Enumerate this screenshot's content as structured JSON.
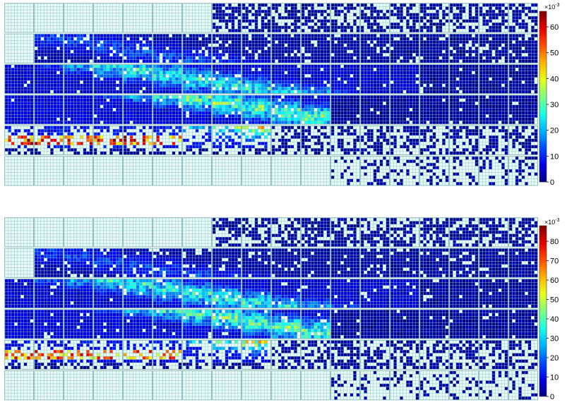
{
  "chart_data": [
    {
      "type": "heatmap",
      "title": "",
      "grid_rows": 6,
      "grid_cols": 18,
      "cells_per_tile": 9,
      "colormap": "jet",
      "empty_cell_color": "#e8fbf8",
      "tile_border_color": "#69a3a3",
      "zlim": [
        0,
        66
      ],
      "colorbar_ticks": [
        "0",
        "10",
        "20",
        "30",
        "40",
        "50",
        "60"
      ],
      "colorbar_multiplier": "×10",
      "colorbar_exponent": "-3",
      "occupancy_rows": [
        {
          "row": 0,
          "empty_until_col": 7,
          "sparse_from_col": 7,
          "density": 0.6,
          "peak": 0
        },
        {
          "row": 1,
          "empty_until_col": 1,
          "sparse_from_col": 13,
          "density": 0.9,
          "peak": 20
        },
        {
          "row": 2,
          "empty_until_col": 0,
          "sparse_from_col": 14,
          "density": 0.95,
          "peak": 40
        },
        {
          "row": 3,
          "empty_until_col": 0,
          "sparse_from_col": 11,
          "density": 0.95,
          "peak": 48
        },
        {
          "row": 4,
          "empty_until_col": 0,
          "sparse_from_col": 9,
          "density": 0.5,
          "peak": 66
        },
        {
          "row": 5,
          "empty_until_col": 11,
          "sparse_from_col": 11,
          "density": 0.25,
          "peak": 0
        }
      ]
    },
    {
      "type": "heatmap",
      "title": "",
      "grid_rows": 6,
      "grid_cols": 18,
      "cells_per_tile": 9,
      "colormap": "jet",
      "empty_cell_color": "#e8fbf8",
      "tile_border_color": "#69a3a3",
      "zlim": [
        0,
        88
      ],
      "colorbar_ticks": [
        "0",
        "10",
        "20",
        "30",
        "40",
        "50",
        "60",
        "70",
        "80"
      ],
      "colorbar_multiplier": "×10",
      "colorbar_exponent": "-3",
      "occupancy_rows": [
        {
          "row": 0,
          "empty_until_col": 7,
          "sparse_from_col": 7,
          "density": 0.6,
          "peak": 0
        },
        {
          "row": 1,
          "empty_until_col": 1,
          "sparse_from_col": 13,
          "density": 0.9,
          "peak": 25
        },
        {
          "row": 2,
          "empty_until_col": 0,
          "sparse_from_col": 14,
          "density": 0.95,
          "peak": 55
        },
        {
          "row": 3,
          "empty_until_col": 0,
          "sparse_from_col": 11,
          "density": 0.95,
          "peak": 62
        },
        {
          "row": 4,
          "empty_until_col": 0,
          "sparse_from_col": 9,
          "density": 0.5,
          "peak": 82
        },
        {
          "row": 5,
          "empty_until_col": 11,
          "sparse_from_col": 11,
          "density": 0.25,
          "peak": 0
        }
      ]
    }
  ]
}
